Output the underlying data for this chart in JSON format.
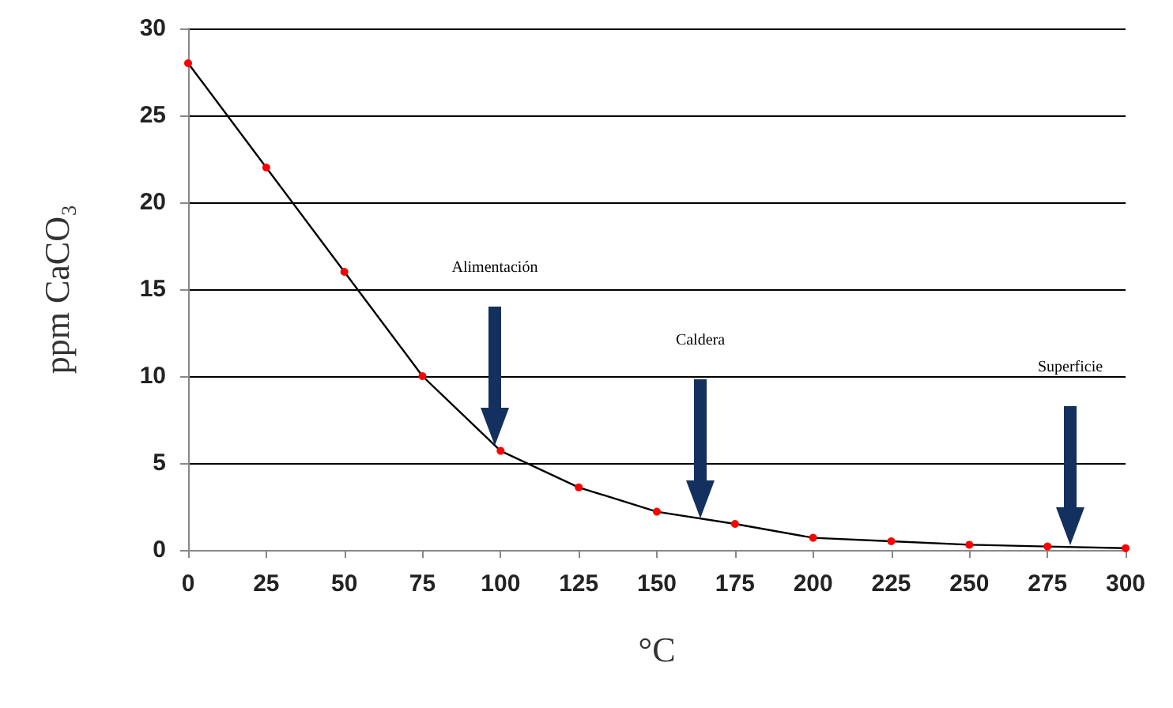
{
  "chart_data": {
    "type": "line",
    "xlabel": "°C",
    "ylabel": "ppm CaCO₃",
    "x": [
      0,
      25,
      50,
      75,
      100,
      125,
      150,
      175,
      200,
      225,
      250,
      275,
      300
    ],
    "series": [
      {
        "color": "#000000",
        "colors": [
          "#ff0000",
          "#ff0000",
          "#ff0000",
          "#ff0000",
          "#ff0000",
          "#ff0000",
          "#ff0000",
          "#ff0000",
          "#ff0000",
          "#ff0000",
          "#ff0000",
          "#ff0000",
          "#ff0000"
        ],
        "values": [
          28,
          22,
          16,
          10,
          5.7,
          3.6,
          2.2,
          1.5,
          0.7,
          0.5,
          0.3,
          0.2,
          0.1
        ]
      }
    ],
    "xlim": [
      0,
      300
    ],
    "xticks": [
      0,
      25,
      50,
      75,
      100,
      125,
      150,
      175,
      200,
      225,
      250,
      275,
      300
    ],
    "ylim": [
      0,
      30
    ],
    "yticks": [
      0,
      5,
      10,
      15,
      20,
      25,
      30
    ],
    "grid": "y",
    "marker": "circle",
    "line_style": "solid",
    "annotations": [
      "Alimentación",
      "Caldera",
      "Superficie"
    ]
  }
}
